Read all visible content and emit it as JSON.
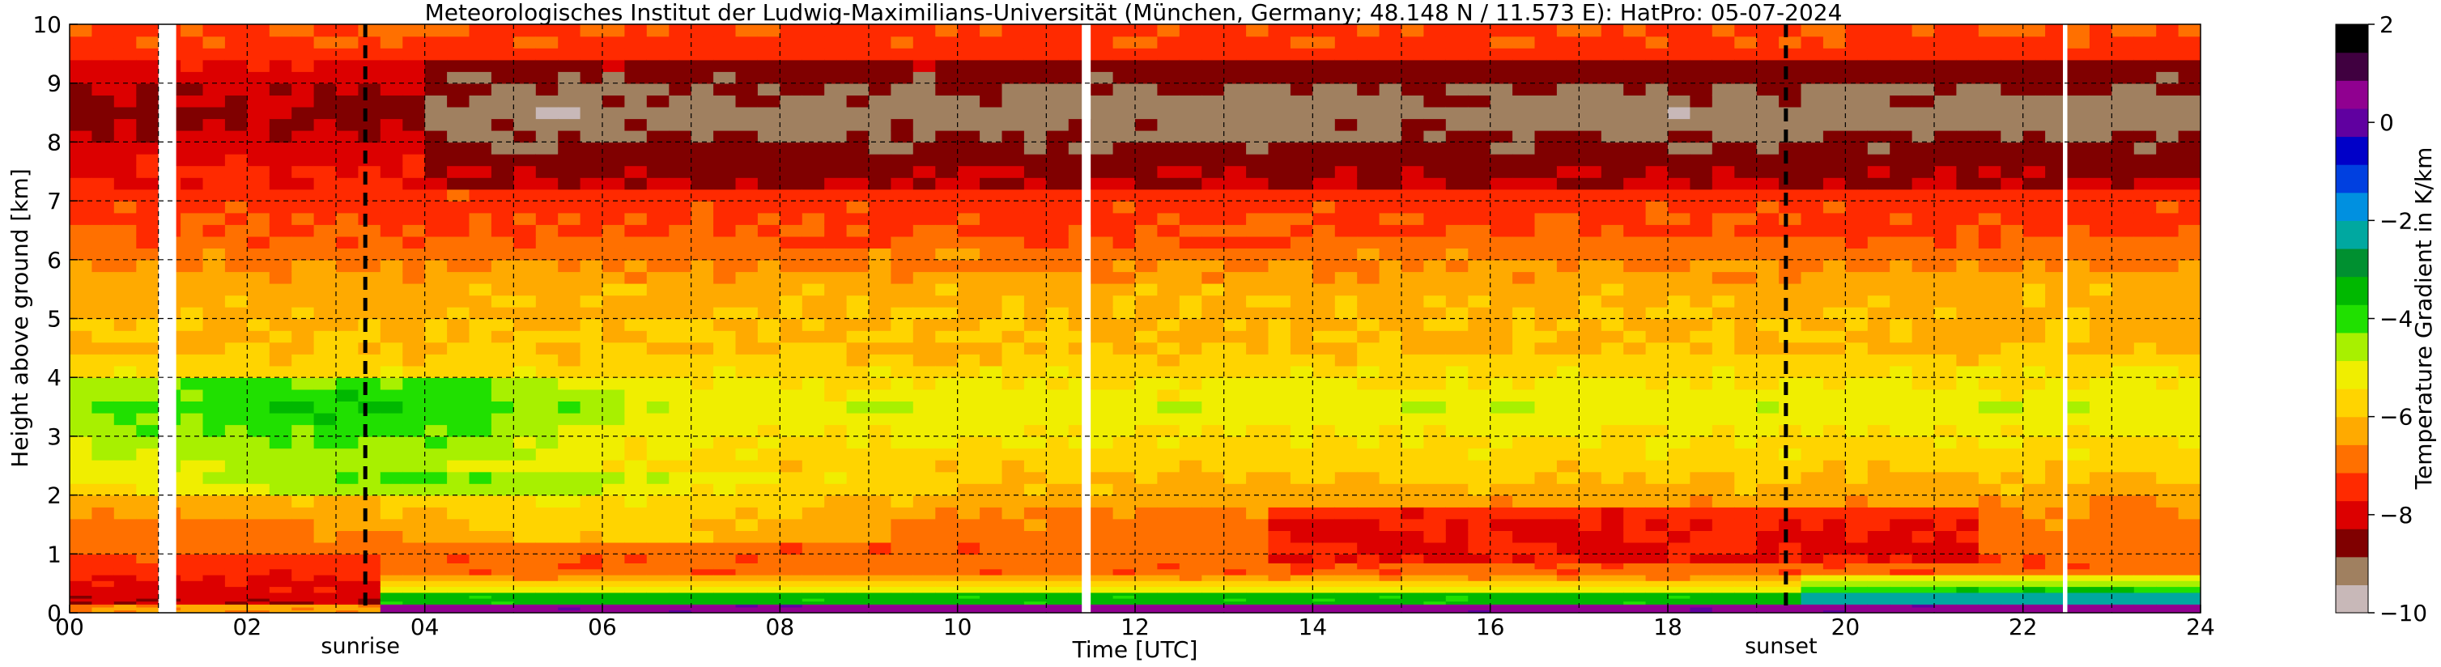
{
  "chart_data": {
    "type": "heatmap",
    "title": "Meteorologisches Institut der Ludwig-Maximilians-Universität (München, Germany; 48.148 N / 11.573 E):    HatPro: 05-07-2024",
    "xlabel": "Time [UTC]",
    "ylabel": "Height above ground [km]",
    "xlim": [
      0,
      24
    ],
    "ylim": [
      0,
      10
    ],
    "x_ticks": [
      "00",
      "02",
      "04",
      "06",
      "08",
      "10",
      "12",
      "14",
      "16",
      "18",
      "20",
      "22",
      "24"
    ],
    "y_ticks": [
      "0",
      "1",
      "2",
      "3",
      "4",
      "5",
      "6",
      "7",
      "8",
      "9",
      "10"
    ],
    "grid": true,
    "colorbar": {
      "label": "Temperature Gradient in K/km",
      "range": [
        -10,
        2
      ],
      "ticks": [
        "2",
        "0",
        "−2",
        "−4",
        "−6",
        "−8",
        "−10"
      ],
      "colors": [
        "#c8b8b8",
        "#a08060",
        "#800000",
        "#dc0000",
        "#ff2a00",
        "#ff7000",
        "#ffaa00",
        "#ffd400",
        "#f0ee00",
        "#a8f000",
        "#20e000",
        "#00b800",
        "#009030",
        "#00a8a0",
        "#0090e0",
        "#0040e0",
        "#0000c8",
        "#6000a0",
        "#900090",
        "#400040",
        "#000000"
      ]
    },
    "events": [
      {
        "label": "sunrise",
        "time": 3.33
      },
      {
        "label": "sunset",
        "time": 19.33
      }
    ],
    "data_gaps": [
      [
        1.0,
        1.2
      ],
      [
        11.4,
        11.5
      ],
      [
        22.45,
        22.5
      ]
    ],
    "gradient_profile_km": [
      {
        "height": 0.1,
        "value": 0.0
      },
      {
        "height": 0.3,
        "value": -4.5
      },
      {
        "height": 0.7,
        "value": -7.0
      },
      {
        "height": 1.5,
        "value": -6.8
      },
      {
        "height": 2.5,
        "value": -5.8
      },
      {
        "height": 3.5,
        "value": -5.0
      },
      {
        "height": 4.5,
        "value": -6.0
      },
      {
        "height": 5.5,
        "value": -6.2
      },
      {
        "height": 6.5,
        "value": -7.2
      },
      {
        "height": 7.5,
        "value": -7.5
      },
      {
        "height": 8.5,
        "value": -8.3
      },
      {
        "height": 9.8,
        "value": -7.2
      }
    ]
  }
}
